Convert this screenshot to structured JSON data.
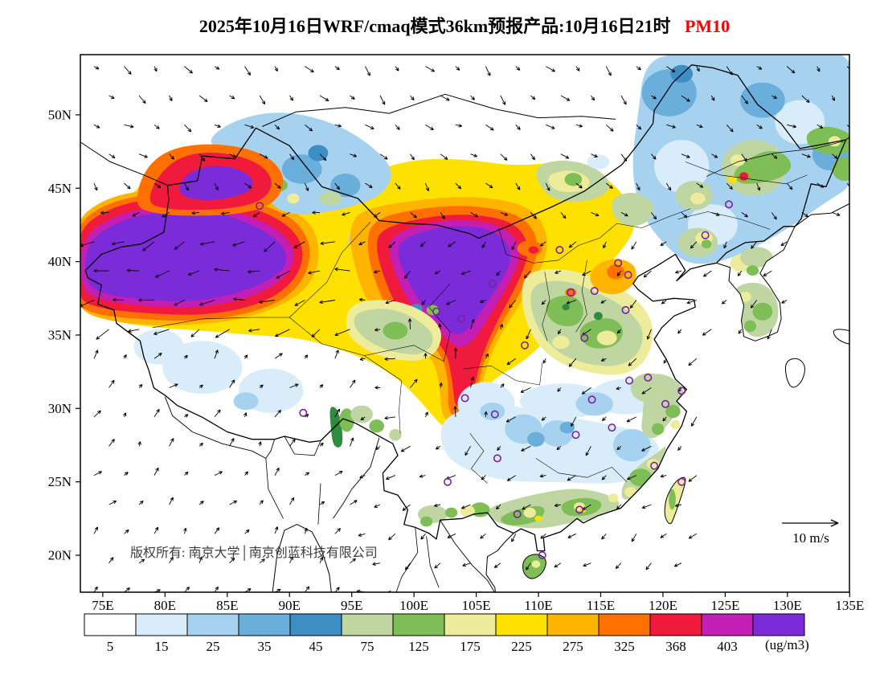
{
  "title": {
    "main": "2025年10月16日WRF/cmaq模式36km预报产品:10月16日21时",
    "species": "PM10",
    "species_color": "#FF0000"
  },
  "axes": {
    "lat_ticks": [
      {
        "label": "50N",
        "value": 50
      },
      {
        "label": "45N",
        "value": 45
      },
      {
        "label": "40N",
        "value": 40
      },
      {
        "label": "35N",
        "value": 35
      },
      {
        "label": "30N",
        "value": 30
      },
      {
        "label": "25N",
        "value": 25
      },
      {
        "label": "20N",
        "value": 20
      }
    ],
    "lon_ticks": [
      {
        "label": "75E",
        "value": 75
      },
      {
        "label": "80E",
        "value": 80
      },
      {
        "label": "85E",
        "value": 85
      },
      {
        "label": "90E",
        "value": 90
      },
      {
        "label": "95E",
        "value": 95
      },
      {
        "label": "100E",
        "value": 100
      },
      {
        "label": "105E",
        "value": 105
      },
      {
        "label": "110E",
        "value": 110
      },
      {
        "label": "115E",
        "value": 115
      },
      {
        "label": "120E",
        "value": 120
      },
      {
        "label": "125E",
        "value": 125
      },
      {
        "label": "130E",
        "value": 130
      },
      {
        "label": "135E",
        "value": 135
      }
    ]
  },
  "annotations": {
    "copyright": "版权所有: 南京大学│南京创蓝科技有限公司",
    "wind_reference": "10 m/s"
  },
  "stations": {
    "marker_color": "#7B1FA2",
    "lonlat": [
      [
        126.5,
        45.8
      ],
      [
        125.3,
        43.9
      ],
      [
        123.4,
        41.8
      ],
      [
        111.7,
        40.8
      ],
      [
        116.4,
        39.9
      ],
      [
        117.2,
        39.1
      ],
      [
        114.5,
        38.0
      ],
      [
        112.6,
        37.9
      ],
      [
        117.0,
        36.7
      ],
      [
        113.7,
        34.8
      ],
      [
        108.9,
        34.3
      ],
      [
        106.3,
        38.5
      ],
      [
        103.8,
        36.1
      ],
      [
        101.8,
        36.6
      ],
      [
        87.6,
        43.8
      ],
      [
        91.1,
        29.7
      ],
      [
        104.1,
        30.7
      ],
      [
        106.5,
        29.6
      ],
      [
        114.3,
        30.6
      ],
      [
        117.3,
        31.9
      ],
      [
        118.8,
        32.1
      ],
      [
        121.5,
        31.2
      ],
      [
        120.2,
        30.3
      ],
      [
        115.9,
        28.7
      ],
      [
        113.0,
        28.2
      ],
      [
        106.7,
        26.6
      ],
      [
        102.7,
        25.0
      ],
      [
        119.3,
        26.1
      ],
      [
        121.5,
        25.0
      ],
      [
        113.3,
        23.1
      ],
      [
        108.3,
        22.8
      ],
      [
        110.3,
        20.0
      ]
    ]
  },
  "colorbar": {
    "unit": "(ug/m3)",
    "labels": [
      "5",
      "15",
      "25",
      "35",
      "45",
      "75",
      "125",
      "175",
      "225",
      "275",
      "325",
      "368",
      "403"
    ],
    "colors": [
      "#FFFFFF",
      "#D8ECF9",
      "#A6D2F0",
      "#6AAEDC",
      "#3D8EC4",
      "#BFD6A3",
      "#7FBE56",
      "#EDEC9B",
      "#FFE100",
      "#FFB400",
      "#FF7000",
      "#EF1A3C",
      "#C41FB5",
      "#7C2BD9"
    ]
  },
  "chart_data": {
    "type": "heatmap",
    "title": "2025年10月16日WRF/cmaq模式36km预报产品:10月16日21时 PM10",
    "variable": "PM10",
    "unit": "ug/m3",
    "x_axis": {
      "label": "longitude",
      "ticks": [
        "75E",
        "80E",
        "85E",
        "90E",
        "95E",
        "100E",
        "105E",
        "110E",
        "115E",
        "120E",
        "125E",
        "130E",
        "135E"
      ]
    },
    "y_axis": {
      "label": "latitude",
      "ticks": [
        "20N",
        "25N",
        "30N",
        "35N",
        "40N",
        "45N",
        "50N"
      ]
    },
    "color_levels": [
      5,
      15,
      25,
      35,
      45,
      75,
      125,
      175,
      225,
      275,
      325,
      368,
      403
    ],
    "level_colors": [
      "#FFFFFF",
      "#D8ECF9",
      "#A6D2F0",
      "#6AAEDC",
      "#3D8EC4",
      "#BFD6A3",
      "#7FBE56",
      "#EDEC9B",
      "#FFE100",
      "#FFB400",
      "#FF7000",
      "#EF1A3C",
      "#C41FB5",
      "#7C2BD9"
    ],
    "legend_position": "bottom",
    "grid": false,
    "overlays": [
      "wind vectors with 10 m/s reference arrow",
      "purple circle markers at provincial capitals"
    ],
    "notable_features": [
      "PM10 above 403 ug/m3 (purple) over the Tarim Basin and over the Gansu / western Inner Mongolia region",
      "Red band (325-403) surrounding both purple maxima, extending south along 100-104E",
      "Yellow to orange values (125-325) across northern China and Mongolia",
      "Low values (below 45, white-blue) over Tibet, southern China and the far northeast"
    ]
  }
}
